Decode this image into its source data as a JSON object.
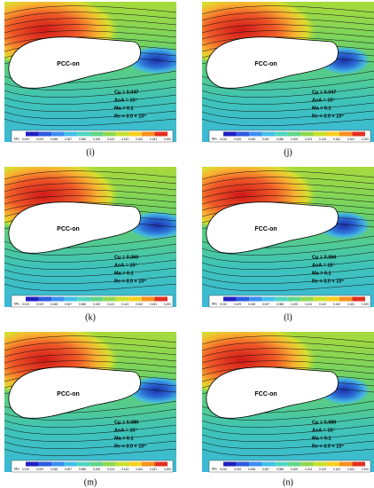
{
  "panels": [
    {
      "label": "(i)",
      "airfoil": "PCC-on",
      "params": [
        "Cμ = 0.047",
        "AoA = 15°",
        "Ma = 0.1",
        "Re = 3.0 × 10⁶"
      ]
    },
    {
      "label": "(j)",
      "airfoil": "FCC-on",
      "params": [
        "Cμ = 0.047",
        "AoA = 15°",
        "Ma = 0.1",
        "Re = 3.0 × 10⁶"
      ]
    },
    {
      "label": "(k)",
      "airfoil": "PCC-on",
      "params": [
        "Cμ = 0.060",
        "AoA = 15°",
        "Ma = 0.1",
        "Re = 3.0 × 10⁶"
      ]
    },
    {
      "label": "(l)",
      "airfoil": "FCC-on",
      "params": [
        "Cμ = 0.060",
        "AoA = 15°",
        "Ma = 0.1",
        "Re = 3.0 × 10⁶"
      ]
    },
    {
      "label": "(m)",
      "airfoil": "PCC-on",
      "params": [
        "Cμ = 0.080",
        "AoA = 15°",
        "Ma = 0.1",
        "Re = 3.0 × 10⁶"
      ]
    },
    {
      "label": "(n)",
      "airfoil": "FCC-on",
      "params": [
        "Cμ = 0.080",
        "AoA = 15°",
        "Ma = 0.1",
        "Re = 3.0 × 10⁶"
      ]
    }
  ],
  "colorbar": {
    "label": "Ma",
    "ticks": [
      "0.010",
      "0.029",
      "0.048",
      "0.067",
      "0.086",
      "0.105",
      "0.124",
      "0.143",
      "0.162",
      "0.181",
      "0.200"
    ]
  }
}
